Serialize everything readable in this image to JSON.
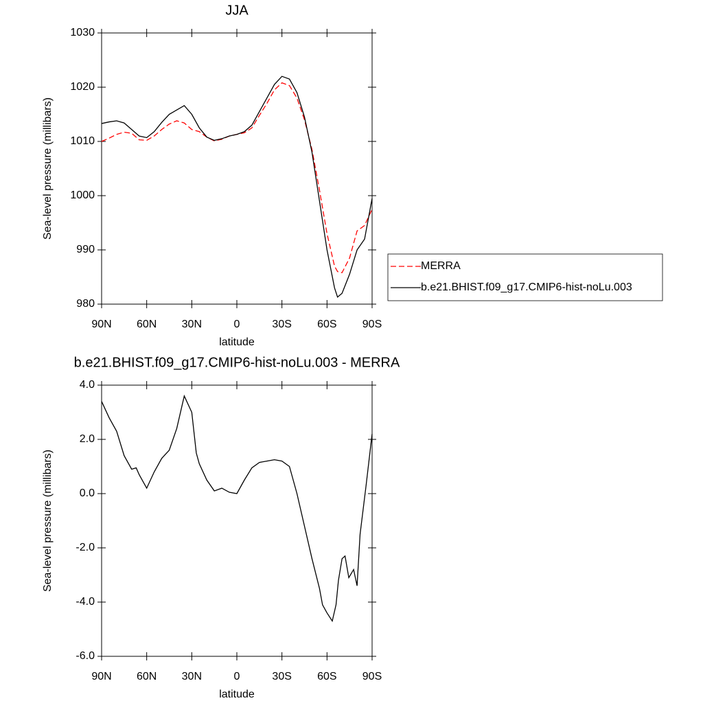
{
  "chart_data": [
    {
      "type": "line",
      "title": "JJA",
      "x_label": "latitude",
      "y_label": "Sea-level pressure (millibars)",
      "x": [
        90,
        85,
        80,
        75,
        70,
        65,
        60,
        55,
        50,
        45,
        40,
        35,
        30,
        25,
        20,
        15,
        10,
        5,
        0,
        -5,
        -10,
        -15,
        -20,
        -25,
        -30,
        -35,
        -40,
        -45,
        -50,
        -55,
        -60,
        -65,
        -67,
        -70,
        -75,
        -80,
        -85,
        -90
      ],
      "xlim": [
        90,
        -90
      ],
      "xticks": [
        {
          "value": 90,
          "label": "90N"
        },
        {
          "value": 60,
          "label": "60N"
        },
        {
          "value": 30,
          "label": "30N"
        },
        0,
        {
          "value": -30,
          "label": "30S"
        },
        {
          "value": -60,
          "label": "60S"
        },
        {
          "value": -90,
          "label": "90S"
        }
      ],
      "ylim": [
        980,
        1030
      ],
      "yticks": [
        980,
        990,
        1000,
        1010,
        1020,
        1030
      ],
      "legend": "right",
      "series": [
        {
          "name": "MERRA",
          "color": "#ff0000",
          "line_style": "dashed",
          "values": [
            1010,
            1010.6,
            1011.3,
            1011.7,
            1011.5,
            1010.3,
            1010.2,
            1011,
            1012.2,
            1013.2,
            1013.8,
            1013.4,
            1012.2,
            1011.8,
            1010.8,
            1010.1,
            1010.4,
            1011,
            1011.3,
            1011.6,
            1012.5,
            1014.8,
            1017,
            1019.5,
            1020.8,
            1020.3,
            1018,
            1014,
            1008.5,
            1001,
            993,
            987,
            986,
            985.8,
            988.5,
            993.5,
            994.5,
            997.5
          ]
        },
        {
          "name": "b.e21.BHIST.f09_g17.CMIP6-hist-noLu.003",
          "color": "#000000",
          "line_style": "solid",
          "values": [
            1013.3,
            1013.6,
            1013.8,
            1013.4,
            1012.2,
            1011,
            1010.7,
            1011.8,
            1013.5,
            1015,
            1015.8,
            1016.6,
            1015,
            1012.5,
            1010.8,
            1010.2,
            1010.5,
            1011,
            1011.3,
            1011.8,
            1013,
            1015.5,
            1018,
            1020.5,
            1022,
            1021.5,
            1019,
            1014.5,
            1008,
            999,
            990,
            983,
            981.3,
            982,
            985.5,
            990,
            992,
            999.5
          ]
        }
      ]
    },
    {
      "type": "line",
      "title": "b.e21.BHIST.f09_g17.CMIP6-hist-noLu.003 - MERRA",
      "x_label": "latitude",
      "y_label": "Sea-level pressure (millibars)",
      "x": [
        90,
        85,
        80,
        75,
        70,
        67,
        65,
        60,
        55,
        50,
        45,
        40,
        35,
        30,
        27,
        25,
        20,
        15,
        10,
        5,
        0,
        -5,
        -10,
        -15,
        -20,
        -25,
        -30,
        -35,
        -40,
        -45,
        -50,
        -55,
        -57,
        -60,
        -63.5,
        -66,
        -67.6,
        -70,
        -72,
        -74.5,
        -77.7,
        -80,
        -82,
        -86,
        -90
      ],
      "xlim": [
        90,
        -90
      ],
      "xticks": [
        {
          "value": 90,
          "label": "90N"
        },
        {
          "value": 60,
          "label": "60N"
        },
        {
          "value": 30,
          "label": "30N"
        },
        0,
        {
          "value": -30,
          "label": "30S"
        },
        {
          "value": -60,
          "label": "60S"
        },
        {
          "value": -90,
          "label": "90S"
        }
      ],
      "ylim": [
        -6,
        4
      ],
      "yticks": [
        {
          "value": -6,
          "label": "-6.0"
        },
        {
          "value": -4,
          "label": "-4.0"
        },
        {
          "value": -2,
          "label": "-2.0"
        },
        {
          "value": 0,
          "label": "0.0"
        },
        {
          "value": 2,
          "label": "2.0"
        },
        {
          "value": 4,
          "label": "4.0"
        }
      ],
      "series": [
        {
          "color": "#000000",
          "line_style": "solid",
          "values": [
            3.4,
            2.8,
            2.3,
            1.4,
            0.9,
            0.95,
            0.7,
            0.2,
            0.8,
            1.3,
            1.6,
            2.4,
            3.6,
            3.0,
            1.5,
            1.1,
            0.5,
            0.1,
            0.2,
            0.05,
            0.0,
            0.5,
            0.95,
            1.15,
            1.2,
            1.25,
            1.2,
            1.0,
            0.0,
            -1.2,
            -2.4,
            -3.5,
            -4.1,
            -4.4,
            -4.7,
            -4.1,
            -3.2,
            -2.4,
            -2.3,
            -3.1,
            -2.8,
            -3.4,
            -1.5,
            0.3,
            2.2
          ]
        }
      ]
    }
  ]
}
